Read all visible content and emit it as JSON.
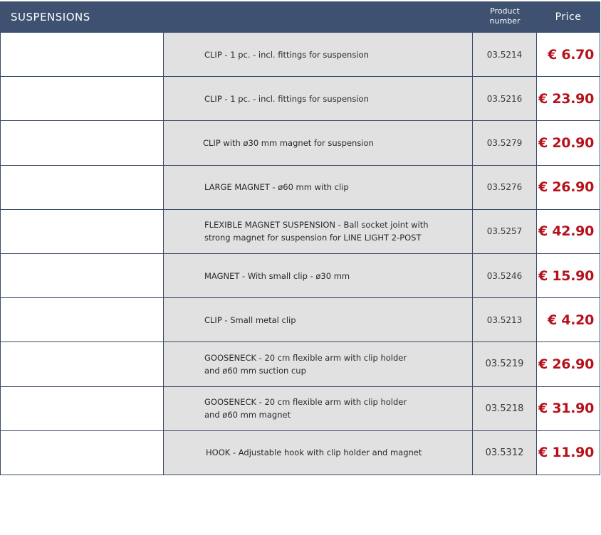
{
  "header": {
    "title": "SUSPENSIONS",
    "product_number_label": "Product\nnumber",
    "price_label": "Price"
  },
  "colors": {
    "header_bg": "#3f5170",
    "row_bg": "#e1e1e1",
    "price_text": "#b5121b",
    "border": "#3a4a66"
  },
  "rows": [
    {
      "description": "CLIP  - 1 pc. - incl. fittings for suspension",
      "code": "03.5214",
      "price": "€ 6.70"
    },
    {
      "description": "CLIP  - 1 pc. - incl. fittings for suspension",
      "code": "03.5216",
      "price": "€ 23.90"
    },
    {
      "description": "CLIP with ø30 mm magnet for suspension",
      "code": "03.5279",
      "price": "€ 20.90"
    },
    {
      "description": "LARGE MAGNET - ø60 mm with clip",
      "code": "03.5276",
      "price": "€ 26.90"
    },
    {
      "description": "FLEXIBLE MAGNET  SUSPENSION  - Ball socket joint with\nstrong magnet for suspension for LINE LIGHT 2-POST",
      "code": "03.5257",
      "price": "€ 42.90"
    },
    {
      "description": "MAGNET -  With small clip - ø30 mm",
      "code": "03.5246",
      "price": "€ 15.90"
    },
    {
      "description": "CLIP - Small metal clip",
      "code": "03.5213",
      "price": "€ 4.20"
    },
    {
      "description": "GOOSENECK - 20 cm flexible arm with clip holder\nand  ø60 mm suction  cup",
      "code": "03.5219",
      "price": "€ 26.90"
    },
    {
      "description": "GOOSENECK - 20 cm flexible arm with clip holder\nand  ø60 mm magnet",
      "code": "03.5218",
      "price": "€ 31.90"
    },
    {
      "description": "HOOK - Adjustable hook with clip holder and magnet",
      "code": "03.5312",
      "price": "€ 11.90"
    }
  ]
}
